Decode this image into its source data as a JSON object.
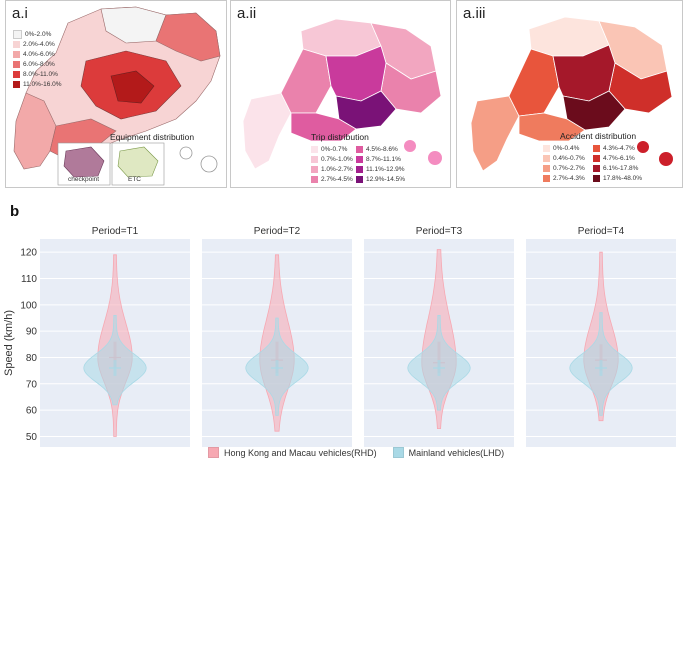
{
  "maps": {
    "a_i": {
      "tag": "a.i",
      "legend": [
        {
          "label": "0%-2.0%",
          "color": "#f4f4f4"
        },
        {
          "label": "2.0%-4.0%",
          "color": "#f7d4d4"
        },
        {
          "label": "4.0%-6.0%",
          "color": "#f2a9a9"
        },
        {
          "label": "6.0%-8.0%",
          "color": "#e97474"
        },
        {
          "label": "8.0%-11.0%",
          "color": "#dc3b3b"
        },
        {
          "label": "11.0%-16.0%",
          "color": "#b31a1a"
        }
      ],
      "title": "Equipment distribution",
      "inset_labels": [
        "checkpoint",
        "ETC"
      ]
    },
    "a_ii": {
      "tag": "a.ii",
      "title": "Trip distribution",
      "legend": [
        {
          "label": "0%-0.7%",
          "color": "#fbe3ea"
        },
        {
          "label": "0.7%-1.0%",
          "color": "#f7c7d6"
        },
        {
          "label": "1.0%-2.7%",
          "color": "#f2a6c0"
        },
        {
          "label": "2.7%-4.5%",
          "color": "#ea82ac"
        },
        {
          "label": "4.5%-8.6%",
          "color": "#df5ca0"
        },
        {
          "label": "8.7%-11.1%",
          "color": "#c93a9c"
        },
        {
          "label": "11.1%-12.9%",
          "color": "#a21f8c"
        },
        {
          "label": "12.9%-14.5%",
          "color": "#7a1277"
        }
      ]
    },
    "a_iii": {
      "tag": "a.iii",
      "title": "Accident distribution",
      "legend": [
        {
          "label": "0%-0.4%",
          "color": "#fde4dd"
        },
        {
          "label": "0.4%-0.7%",
          "color": "#fac5b5"
        },
        {
          "label": "0.7%-2.7%",
          "color": "#f59e86"
        },
        {
          "label": "2.7%-4.3%",
          "color": "#ef7b5e"
        },
        {
          "label": "4.3%-4.7%",
          "color": "#e8553c"
        },
        {
          "label": "4.7%-6.1%",
          "color": "#cf2f2a"
        },
        {
          "label": "6.1%-17.8%",
          "color": "#a5182a"
        },
        {
          "label": "17.8%-48.0%",
          "color": "#6b0c1c"
        }
      ]
    }
  },
  "figure_b": {
    "tag": "b"
  },
  "chart_data": {
    "type": "violin",
    "ylabel": "Speed (km/h)",
    "ylim": [
      46,
      125
    ],
    "yticks": [
      50,
      60,
      70,
      80,
      90,
      100,
      110,
      120
    ],
    "grid": true,
    "legend_position": "bottom",
    "panels": [
      "Period=T1",
      "Period=T2",
      "Period=T3",
      "Period=T4"
    ],
    "series": [
      {
        "name": "Hong Kong and Macau vehicles(RHD)",
        "color": "#f7a8b2",
        "min": [
          50,
          52,
          53,
          56
        ],
        "max": [
          119,
          119,
          121,
          120
        ],
        "median": [
          80,
          79,
          78,
          79
        ],
        "q1": [
          76,
          74,
          74,
          75
        ],
        "q3": [
          86,
          86,
          86,
          85
        ]
      },
      {
        "name": "Mainland vehicles(LHD)",
        "color": "#a9d9e6",
        "min": [
          62,
          58,
          60,
          58
        ],
        "max": [
          96,
          95,
          96,
          97
        ],
        "median": [
          76,
          76,
          76,
          76
        ],
        "q1": [
          73,
          73,
          73,
          73
        ],
        "q3": [
          79,
          79,
          79,
          79
        ]
      }
    ]
  }
}
